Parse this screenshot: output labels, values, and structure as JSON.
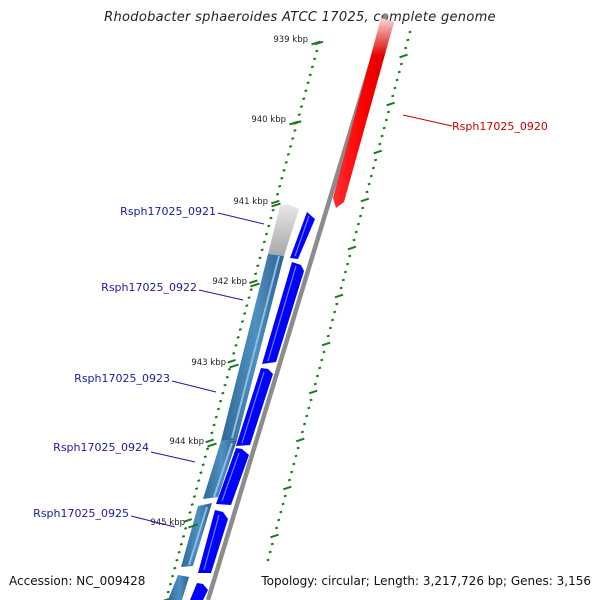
{
  "title": "Rhodobacter sphaeroides ATCC 17025, complete genome",
  "footer": {
    "accession": "Accession: NC_009428",
    "summary": "Topology: circular; Length: 3,217,726 bp; Genes: 3,156"
  },
  "colors": {
    "forward_gene": "#0000ff",
    "reverse_gene": "#4682b4",
    "highlight_gene": "#ff0000",
    "tick": "#1a7a1a",
    "backbone": "#8c8c8c",
    "label_blue": "#1a1aa6",
    "label_red": "#cc0000"
  },
  "ticks": [
    "939 kbp",
    "940 kbp",
    "941 kbp",
    "942 kbp",
    "943 kbp",
    "944 kbp",
    "945 kbp"
  ],
  "gene_labels": [
    {
      "id": "g0920",
      "text": "Rsph17025_0920",
      "color": "red"
    },
    {
      "id": "g0921",
      "text": "Rsph17025_0921",
      "color": "blue"
    },
    {
      "id": "g0922",
      "text": "Rsph17025_0922",
      "color": "blue"
    },
    {
      "id": "g0923",
      "text": "Rsph17025_0923",
      "color": "blue"
    },
    {
      "id": "g0924",
      "text": "Rsph17025_0924",
      "color": "blue"
    },
    {
      "id": "g0925",
      "text": "Rsph17025_0925",
      "color": "blue"
    }
  ]
}
